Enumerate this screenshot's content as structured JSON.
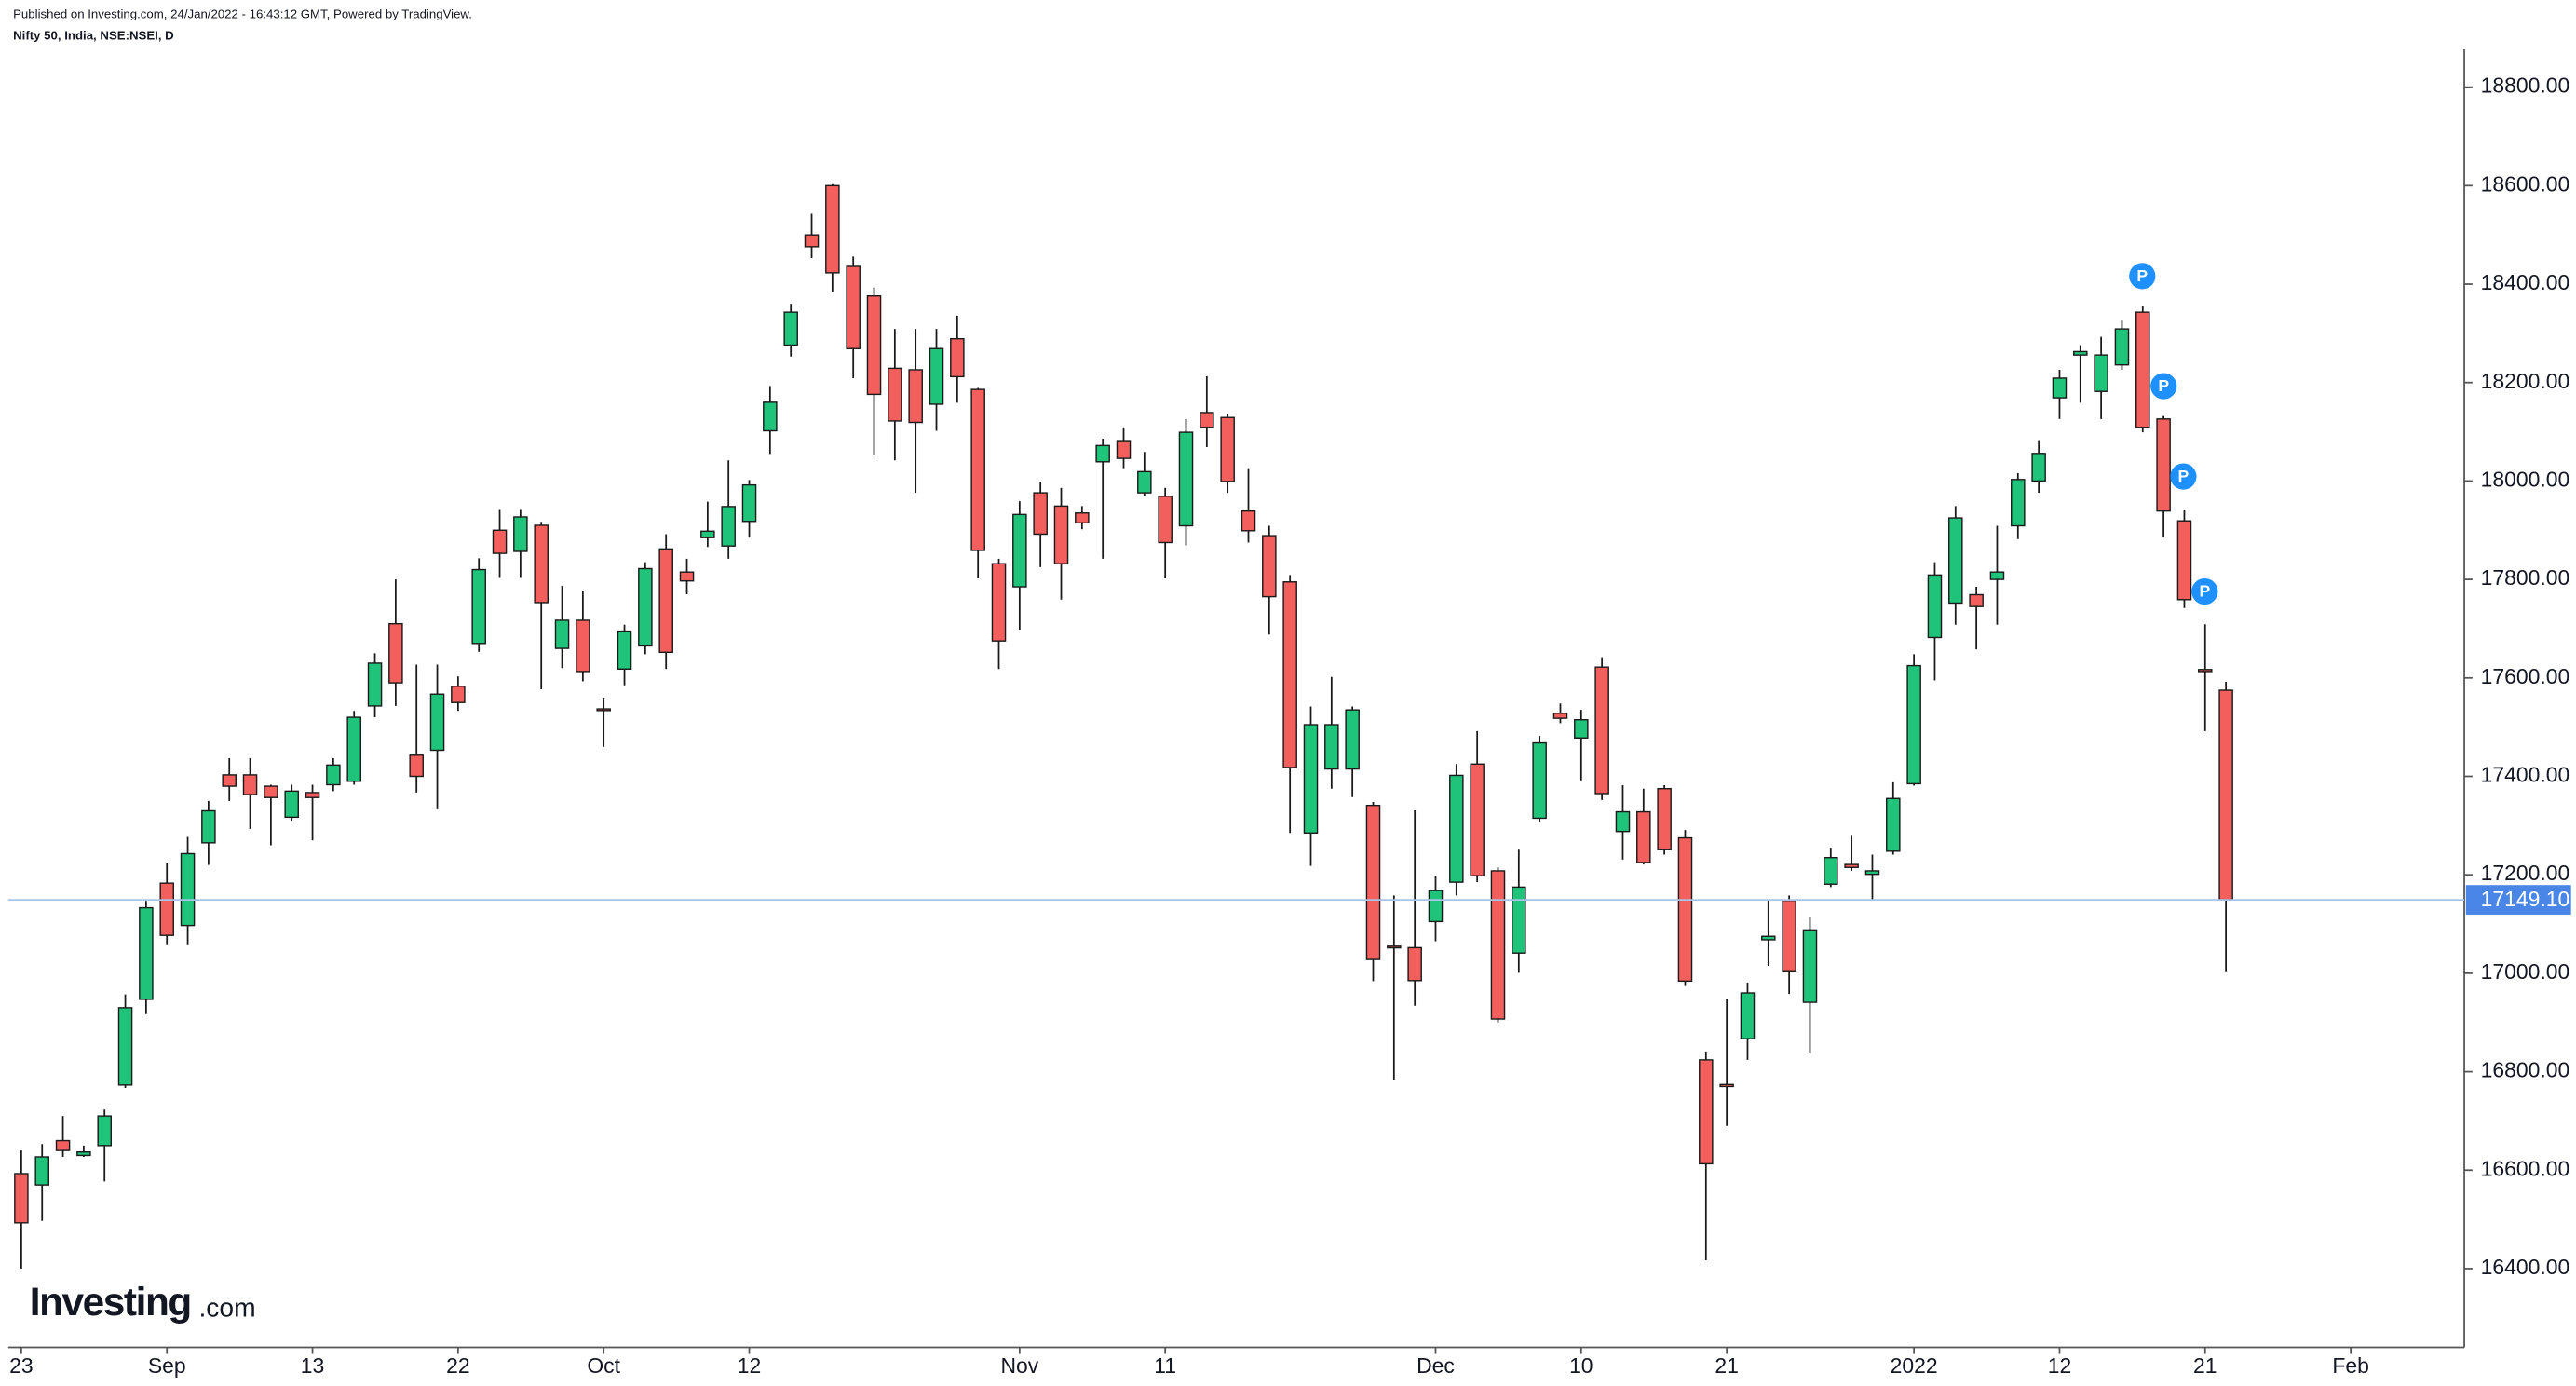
{
  "publisher": "Published on Investing.com, 24/Jan/2022 - 16:43:12 GMT, Powered by TradingView.",
  "logo": {
    "name": "Investing",
    "suffix": ".com"
  },
  "chart_data": {
    "type": "candlestick",
    "title": "Nifty 50, India, NSE:NSEI, D",
    "up_color": "#1fc47a",
    "down_color": "#f25f5c",
    "open": [
      16593,
      16570,
      16660,
      16630,
      16650,
      16773,
      16947,
      17183,
      17097,
      17265,
      17403,
      17403,
      17380,
      17317,
      17367,
      17383,
      17390,
      17543,
      17710,
      17443,
      17453,
      17583,
      17670,
      17900,
      17857,
      17910,
      17660,
      17717,
      17537,
      17618,
      17665,
      17862,
      17815,
      17885,
      17868,
      17918,
      18102,
      18276,
      18500,
      18600,
      18436,
      18376,
      18229,
      18226,
      18156,
      18289,
      18186,
      17832,
      17785,
      17976,
      17949,
      17935,
      18039,
      18082,
      17976,
      17969,
      17909,
      18139,
      18129,
      17939,
      17889,
      17795,
      17285,
      17415,
      17415,
      17341,
      17055,
      17052,
      17105,
      17185,
      17425,
      17208,
      17041,
      17315,
      17528,
      17478,
      17622,
      17288,
      17328,
      17375,
      17275,
      16824,
      16774,
      16867,
      17068,
      17148,
      16941,
      17181,
      17221,
      17201,
      17248,
      17385,
      17682,
      17752,
      17769,
      17800,
      17909,
      18000,
      18169,
      18256,
      18182,
      18236,
      18343,
      18126,
      17919,
      17617,
      17575
    ],
    "high": [
      16640,
      16653,
      16710,
      16650,
      16723,
      16957,
      17147,
      17223,
      17277,
      17350,
      17437,
      17437,
      17383,
      17383,
      17383,
      17437,
      17533,
      17650,
      17800,
      17627,
      17627,
      17603,
      17843,
      17943,
      17943,
      17917,
      17787,
      17777,
      17560,
      17708,
      17835,
      17892,
      17842,
      17958,
      18042,
      18002,
      18193,
      18360,
      18543,
      18603,
      18456,
      18393,
      18309,
      18309,
      18309,
      18336,
      18189,
      17842,
      17959,
      17999,
      17986,
      17949,
      18086,
      18109,
      18059,
      17986,
      18126,
      18213,
      18136,
      18026,
      17909,
      17809,
      17542,
      17602,
      17542,
      17348,
      17158,
      17331,
      17198,
      17425,
      17492,
      17215,
      17251,
      17482,
      17548,
      17535,
      17642,
      17382,
      17375,
      17382,
      17291,
      16841,
      16947,
      16981,
      17148,
      17158,
      17115,
      17255,
      17281,
      17241,
      17388,
      17648,
      17835,
      17949,
      17785,
      17909,
      18016,
      18083,
      18226,
      18276,
      18293,
      18326,
      18356,
      18132,
      17942,
      17709,
      17592
    ],
    "low": [
      16400,
      16497,
      16627,
      16627,
      16577,
      16767,
      16917,
      17057,
      17057,
      17220,
      17350,
      17293,
      17260,
      17310,
      17270,
      17370,
      17383,
      17520,
      17543,
      17367,
      17333,
      17533,
      17653,
      17803,
      17803,
      17577,
      17620,
      17593,
      17460,
      17585,
      17648,
      17618,
      17770,
      17866,
      17842,
      17885,
      18055,
      18253,
      18453,
      18383,
      18209,
      18052,
      18042,
      17976,
      18102,
      18159,
      17802,
      17618,
      17698,
      17825,
      17759,
      17902,
      17842,
      18026,
      17969,
      17802,
      17869,
      18069,
      17976,
      17875,
      17688,
      17285,
      17218,
      17375,
      17358,
      16984,
      16784,
      16934,
      17065,
      17158,
      17185,
      16900,
      17001,
      17308,
      17508,
      17392,
      17352,
      17231,
      17221,
      17241,
      16974,
      16417,
      16690,
      16824,
      17015,
      16958,
      16837,
      17175,
      17208,
      17148,
      17241,
      17381,
      17595,
      17708,
      17658,
      17708,
      17882,
      17976,
      18126,
      18159,
      18126,
      18226,
      18099,
      17885,
      17742,
      17492,
      17004
    ],
    "close": [
      16493,
      16627,
      16640,
      16637,
      16710,
      16930,
      17133,
      17077,
      17243,
      17330,
      17380,
      17363,
      17357,
      17370,
      17357,
      17423,
      17520,
      17630,
      17590,
      17400,
      17567,
      17550,
      17820,
      17853,
      17927,
      17753,
      17717,
      17613,
      17535,
      17695,
      17822,
      17652,
      17797,
      17898,
      17948,
      17992,
      18160,
      18343,
      18476,
      18423,
      18269,
      18176,
      18122,
      18119,
      18269,
      18212,
      17859,
      17675,
      17932,
      17892,
      17832,
      17915,
      18072,
      18046,
      18019,
      17875,
      18099,
      18109,
      17999,
      17899,
      17765,
      17418,
      17505,
      17505,
      17535,
      17028,
      17052,
      16985,
      17168,
      17402,
      17198,
      16907,
      17175,
      17468,
      17518,
      17515,
      17365,
      17328,
      17225,
      17251,
      16984,
      16613,
      16770,
      16960,
      17075,
      17005,
      17088,
      17235,
      17215,
      17208,
      17355,
      17625,
      17809,
      17925,
      17745,
      17815,
      18003,
      18056,
      18209,
      18263,
      18256,
      18309,
      18109,
      17939,
      17759,
      17613,
      17149.1
    ],
    "xlim": [
      -0.63,
      117.46
    ],
    "xticks": [
      {
        "value": 0,
        "label": "23"
      },
      {
        "value": 7,
        "label": "Sep"
      },
      {
        "value": 14,
        "label": "13"
      },
      {
        "value": 21,
        "label": "22"
      },
      {
        "value": 28,
        "label": "Oct"
      },
      {
        "value": 35,
        "label": "12"
      },
      {
        "value": 48,
        "label": "Nov"
      },
      {
        "value": 55,
        "label": "11"
      },
      {
        "value": 68,
        "label": "Dec"
      },
      {
        "value": 75,
        "label": "10"
      },
      {
        "value": 82,
        "label": "21"
      },
      {
        "value": 91,
        "label": "2022"
      },
      {
        "value": 98,
        "label": "12"
      },
      {
        "value": 105,
        "label": "21"
      },
      {
        "value": 112,
        "label": "Feb"
      }
    ],
    "ylim": [
      16240,
      18877
    ],
    "yticks": [
      {
        "value": 16400,
        "label": "16400.00"
      },
      {
        "value": 16600,
        "label": "16600.00"
      },
      {
        "value": 16800,
        "label": "16800.00"
      },
      {
        "value": 17000,
        "label": "17000.00"
      },
      {
        "value": 17200,
        "label": "17200.00"
      },
      {
        "value": 17400,
        "label": "17400.00"
      },
      {
        "value": 17600,
        "label": "17600.00"
      },
      {
        "value": 17800,
        "label": "17800.00"
      },
      {
        "value": 18000,
        "label": "18000.00"
      },
      {
        "value": 18200,
        "label": "18200.00"
      },
      {
        "value": 18400,
        "label": "18400.00"
      },
      {
        "value": 18600,
        "label": "18600.00"
      },
      {
        "value": 18800,
        "label": "18800.00"
      }
    ],
    "last_price": {
      "value": 17149.1,
      "label": "17149.10",
      "color": "#4a86e8"
    },
    "markers": [
      "P",
      "P",
      "P",
      "P"
    ],
    "marker_color": "#1e90ff"
  }
}
